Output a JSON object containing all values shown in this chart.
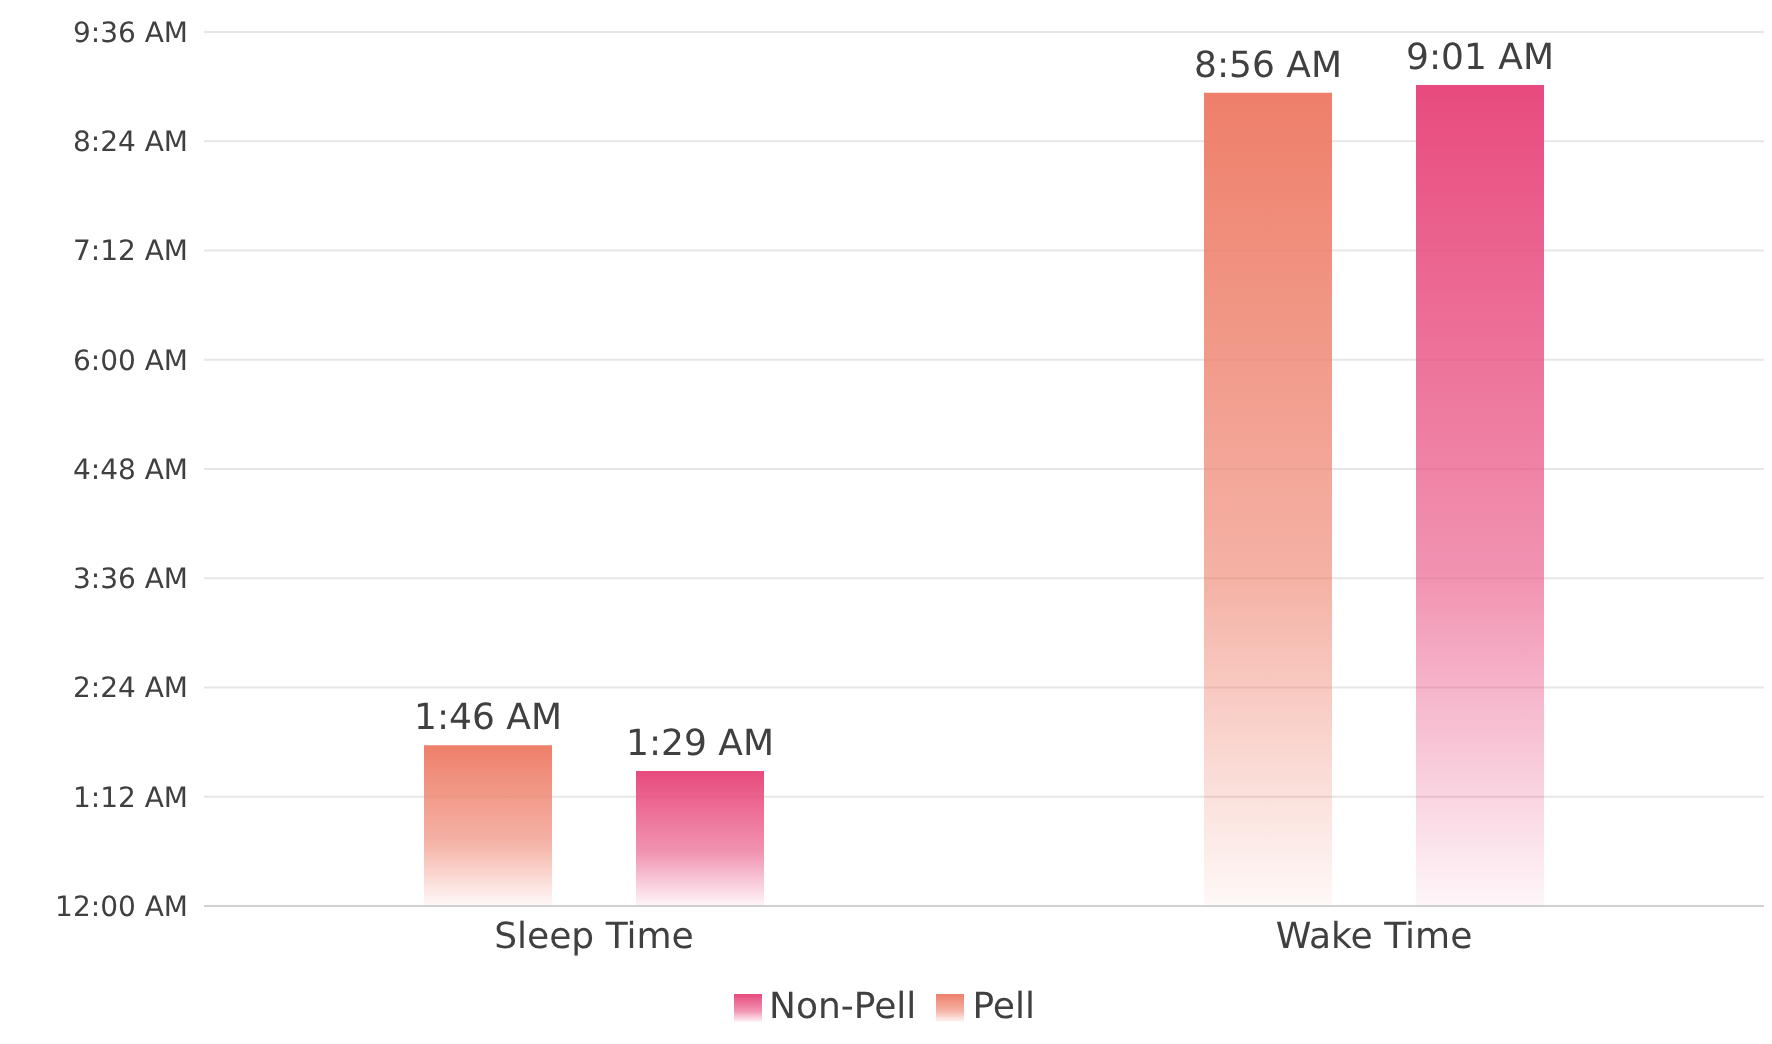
{
  "chart_data": {
    "type": "bar",
    "categories": [
      "Sleep Time",
      "Wake Time"
    ],
    "series": [
      {
        "name": "Pell",
        "color": "#ee7f6a",
        "values": [
          1.7667,
          8.9333
        ],
        "value_labels": [
          "1:46 AM",
          "8:56 AM"
        ]
      },
      {
        "name": "Non-Pell",
        "color": "#e84b7e",
        "values": [
          1.4833,
          9.0167
        ],
        "value_labels": [
          "1:29 AM",
          "9:01 AM"
        ]
      }
    ],
    "ylim": [
      0,
      9.6
    ],
    "yticks": [
      {
        "value": 0,
        "label": "12:00 AM"
      },
      {
        "value": 1.2,
        "label": "1:12 AM"
      },
      {
        "value": 2.4,
        "label": "2:24 AM"
      },
      {
        "value": 3.6,
        "label": "3:36 AM"
      },
      {
        "value": 4.8,
        "label": "4:48 AM"
      },
      {
        "value": 6,
        "label": "6:00 AM"
      },
      {
        "value": 7.2,
        "label": "7:12 AM"
      },
      {
        "value": 8.4,
        "label": "8:24 AM"
      },
      {
        "value": 9.6,
        "label": "9:36 AM"
      }
    ],
    "grid": "y",
    "legend": "bottom"
  }
}
